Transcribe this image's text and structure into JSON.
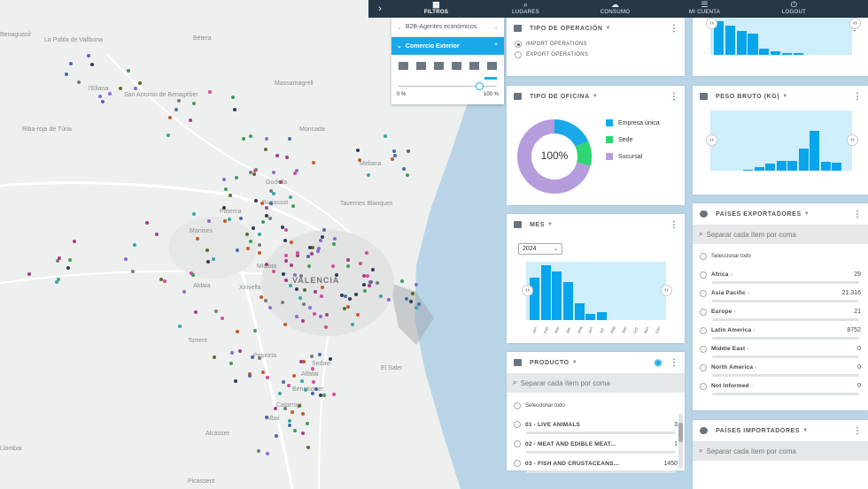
{
  "topnav": {
    "arrow": "›",
    "items": [
      {
        "label": "FILTROS",
        "icon": "▦"
      },
      {
        "label": "LUGARES",
        "icon": "⌕"
      },
      {
        "label": "CONSUMO",
        "icon": "☁"
      },
      {
        "label": "MI CUENTA",
        "icon": "☰"
      },
      {
        "label": "LOGOUT",
        "icon": "⏻"
      }
    ]
  },
  "filters": {
    "group": "B2B-Agentes económicos",
    "selected": "Comercio Exterior",
    "range_min": "0 %",
    "range_max": "100 %",
    "range_value": 0.78
  },
  "map": {
    "towns": [
      "Bétera",
      "Benaguasil",
      "La Pobla de Vallbona",
      "l'Eliana",
      "San Antonio de Benagéber",
      "Riba-roja de Túria",
      "Paterna",
      "Godella",
      "Burjassot",
      "Moncada",
      "Meliana",
      "Manises",
      "Mislata",
      "VALENCIA",
      "Xirivella",
      "Aldaia",
      "Torrent",
      "Paiporta",
      "Sedaví",
      "Alfafar",
      "Catarroja",
      "Albal",
      "Picassent",
      "Llombai",
      "Alcàsser",
      "Tavernes Blanques",
      "Massamagrell",
      "El Saler",
      "Benetússer"
    ],
    "colors": {
      "sea": "#b9d4e6",
      "land": "#eef0ef"
    }
  },
  "tipo_operacion": {
    "title": "TIPO DE OPERACIÓN",
    "options": [
      "IMPORT OPERATIONS",
      "EXPORT OPERATIONS"
    ],
    "selected_index": 0
  },
  "tipo_oficina": {
    "title": "TIPO DE OFICINA",
    "center_label": "100%",
    "legend": [
      {
        "label": "Empresa única",
        "color": "#1aa9e8",
        "share": 0.18
      },
      {
        "label": "Sede",
        "color": "#2ed573",
        "share": 0.11
      },
      {
        "label": "Sucursal",
        "color": "#b59cdd",
        "share": 0.71
      }
    ]
  },
  "mes": {
    "title": "MES",
    "year": "2024",
    "chart_data": {
      "type": "bar",
      "categories": [
        "Jan",
        "Feb",
        "Mar",
        "Apr",
        "May",
        "Jun",
        "Jul",
        "Aug",
        "Sep",
        "Oct",
        "Nov",
        "Dec"
      ],
      "values": [
        78,
        100,
        88,
        70,
        30,
        12,
        14,
        0,
        0,
        0,
        0,
        0
      ],
      "ylim": [
        0,
        100
      ]
    }
  },
  "producto": {
    "title": "PRODUCTO",
    "search_placeholder": "Separar cada ítem por coma",
    "select_all": "Seleccionar todo",
    "items": [
      {
        "label": "01 - LIVE ANIMALS",
        "count": "3"
      },
      {
        "label": "02 - MEAT AND EDIBLE MEAT...",
        "count": "1"
      },
      {
        "label": "03 - FISH AND CRUSTACEANS...",
        "count": "1450"
      }
    ]
  },
  "top_chart": {
    "chart_data": {
      "type": "bar",
      "values": [
        100,
        86,
        70,
        64,
        18,
        10,
        6,
        4,
        0,
        0,
        0,
        0
      ],
      "ylim": [
        0,
        100
      ]
    }
  },
  "peso_bruto": {
    "title": "PESO BRUTO (KG)",
    "chart_data": {
      "type": "bar",
      "values": [
        0,
        0,
        2,
        6,
        12,
        17,
        17,
        39,
        70,
        15,
        14
      ],
      "ylim": [
        0,
        100
      ]
    }
  },
  "paises_exportadores": {
    "title": "PAÍSES EXPORTADORES",
    "search_placeholder": "Separar cada ítem por coma",
    "select_all": "Seleccionar todo",
    "items": [
      {
        "label": "Africa",
        "count": "29"
      },
      {
        "label": "Asia Pacific",
        "count": "21.316"
      },
      {
        "label": "Europe",
        "count": "21"
      },
      {
        "label": "Latin America",
        "count": "8752"
      },
      {
        "label": "Middle East",
        "count": "0"
      },
      {
        "label": "North America",
        "count": "0"
      },
      {
        "label": "Not Informed",
        "count": "0"
      }
    ]
  },
  "paises_importadores": {
    "title": "PAÍSES IMPORTADORES",
    "search_placeholder": "Separar cada ítem por coma"
  }
}
